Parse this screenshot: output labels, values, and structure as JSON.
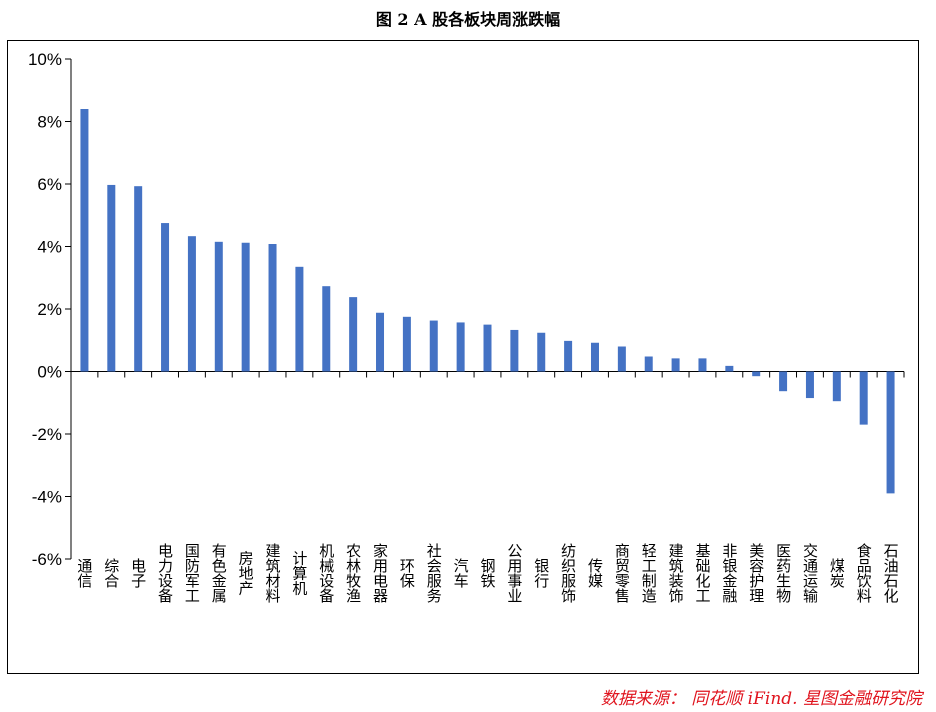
{
  "chart_data": {
    "type": "bar",
    "title": "图 2 A 股各板块周涨跌幅",
    "xlabel": "",
    "ylabel": "",
    "ylim": [
      -6,
      10
    ],
    "yticks": [
      10,
      8,
      6,
      4,
      2,
      0,
      -2,
      -4,
      -6
    ],
    "ytick_labels": [
      "10%",
      "8%",
      "6%",
      "4%",
      "2%",
      "0%",
      "-2%",
      "-4%",
      "-6%"
    ],
    "grid": false,
    "legend": "none",
    "bar_color": "#4472c4",
    "categories": [
      "通信",
      "综合",
      "电子",
      "电力设备",
      "国防军工",
      "有色金属",
      "房地产",
      "建筑材料",
      "计算机",
      "机械设备",
      "农林牧渔",
      "家用电器",
      "环保",
      "社会服务",
      "汽车",
      "钢铁",
      "公用事业",
      "银行",
      "纺织服饰",
      "传媒",
      "商贸零售",
      "轻工制造",
      "建筑装饰",
      "基础化工",
      "非银金融",
      "美容护理",
      "医药生物",
      "交通运输",
      "煤炭",
      "食品饮料",
      "石油石化"
    ],
    "values": [
      8.4,
      5.97,
      5.93,
      4.75,
      4.33,
      4.15,
      4.12,
      4.08,
      3.35,
      2.73,
      2.38,
      1.88,
      1.75,
      1.63,
      1.57,
      1.5,
      1.33,
      1.24,
      0.98,
      0.92,
      0.8,
      0.48,
      0.42,
      0.42,
      0.18,
      -0.15,
      -0.63,
      -0.85,
      -0.95,
      -1.7,
      -3.9
    ]
  },
  "source_note": "数据来源： 同花顺 iFind.  星图金融研究院"
}
